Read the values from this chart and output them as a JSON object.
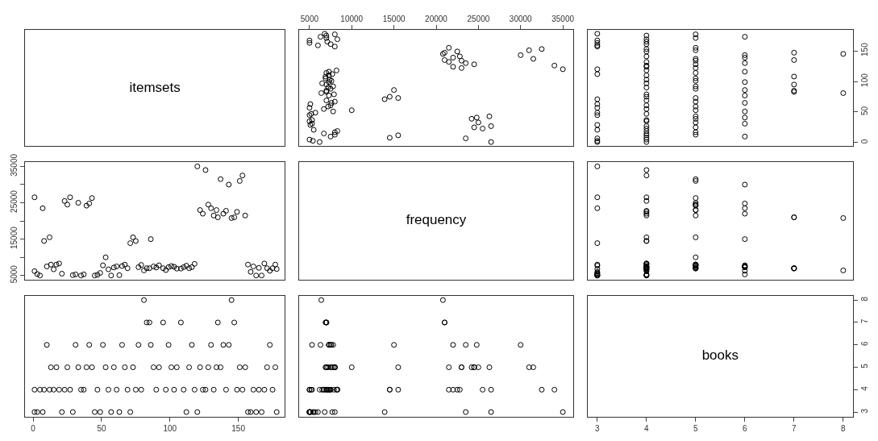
{
  "chart_data": [
    {
      "type": "other",
      "title": "itemsets"
    },
    {
      "type": "scatter",
      "marker": "circle",
      "color": "#000000",
      "grid": false,
      "tick_labels": "x",
      "xlim": [
        3800,
        36200
      ],
      "ylim": [
        -6,
        184
      ],
      "xticks": [
        5000,
        10000,
        15000,
        20000,
        25000,
        30000,
        35000
      ],
      "x": [
        26500,
        6200,
        5400,
        5000,
        23500,
        14500,
        7500,
        15500,
        8000,
        6700,
        8000,
        8300,
        5500,
        25500,
        24500,
        26500,
        5100,
        5300,
        25000,
        5000,
        5300,
        24200,
        24800,
        26300,
        5000,
        5200,
        5700,
        7800,
        10000,
        6700,
        5000,
        7200,
        7500,
        5100,
        7600,
        8000,
        7000,
        13900,
        15500,
        14500,
        7300,
        7900,
        6400,
        7000,
        7000,
        15000,
        7500,
        7200,
        7800,
        7000,
        6500,
        7300,
        7600,
        7400,
        6900,
        6900,
        7300,
        7700,
        7000,
        7300,
        8200,
        35000,
        23000,
        22000,
        34000,
        24500,
        23500,
        21500,
        23000,
        21000,
        31500,
        22000,
        22800,
        30000,
        20800,
        21000,
        22500,
        31000,
        32500,
        21500,
        8000,
        6000,
        7500,
        5000,
        7100,
        5000,
        8300,
        7000,
        6300,
        7000,
        8000,
        6800
      ],
      "values": [
        1,
        1,
        3,
        5,
        7,
        8,
        10,
        12,
        13,
        15,
        17,
        19,
        21,
        23,
        25,
        27,
        29,
        31,
        33,
        35,
        37,
        39,
        41,
        43,
        45,
        47,
        49,
        51,
        53,
        55,
        57,
        59,
        61,
        63,
        65,
        67,
        69,
        71,
        73,
        75,
        77,
        79,
        81,
        83,
        85,
        86,
        88,
        90,
        92,
        95,
        97,
        99,
        101,
        103,
        105,
        108,
        110,
        112,
        114,
        116,
        118,
        120,
        122,
        124,
        126,
        128,
        130,
        132,
        134,
        135,
        137,
        139,
        141,
        143,
        145,
        147,
        149,
        151,
        153,
        155,
        157,
        159,
        161,
        163,
        165,
        167,
        169,
        171,
        173,
        175,
        177,
        178
      ]
    },
    {
      "type": "scatter",
      "marker": "circle",
      "color": "#000000",
      "grid": false,
      "tick_labels": "y",
      "xlim": [
        2.8,
        8.2
      ],
      "ylim": [
        -6,
        184
      ],
      "yticks": [
        0,
        50,
        100,
        150
      ],
      "x": [
        3,
        4,
        3,
        4,
        3,
        4,
        6,
        4,
        5,
        4,
        5,
        4,
        3,
        4,
        5,
        4,
        3,
        6,
        5,
        4,
        4,
        5,
        6,
        5,
        3,
        4,
        3,
        6,
        5,
        4,
        3,
        5,
        4,
        3,
        6,
        5,
        4,
        3,
        5,
        4,
        6,
        4,
        8,
        7,
        7,
        6,
        5,
        4,
        5,
        7,
        4,
        6,
        5,
        4,
        5,
        7,
        4,
        3,
        5,
        6,
        4,
        3,
        5,
        4,
        4,
        5,
        6,
        4,
        5,
        7,
        5,
        6,
        4,
        6,
        8,
        7,
        4,
        5,
        4,
        5,
        3,
        3,
        4,
        3,
        4,
        3,
        4,
        5,
        6,
        4,
        5,
        3
      ],
      "values": [
        1,
        1,
        3,
        5,
        7,
        8,
        10,
        12,
        13,
        15,
        17,
        19,
        21,
        23,
        25,
        27,
        29,
        31,
        33,
        35,
        37,
        39,
        41,
        43,
        45,
        47,
        49,
        51,
        53,
        55,
        57,
        59,
        61,
        63,
        65,
        67,
        69,
        71,
        73,
        75,
        77,
        79,
        81,
        83,
        85,
        86,
        88,
        90,
        92,
        95,
        97,
        99,
        101,
        103,
        105,
        108,
        110,
        112,
        114,
        116,
        118,
        120,
        122,
        124,
        126,
        128,
        130,
        132,
        134,
        135,
        137,
        139,
        141,
        143,
        145,
        147,
        149,
        151,
        153,
        155,
        157,
        159,
        161,
        163,
        165,
        167,
        169,
        171,
        173,
        175,
        177,
        178
      ]
    },
    {
      "type": "scatter",
      "marker": "circle",
      "color": "#000000",
      "grid": false,
      "tick_labels": "y",
      "xlim": [
        -6,
        184
      ],
      "ylim": [
        3800,
        36200
      ],
      "yticks": [
        5000,
        {
          "value": 10000,
          "label": null
        },
        15000,
        {
          "value": 20000,
          "label": null
        },
        25000,
        {
          "value": 30000,
          "label": null
        },
        35000
      ],
      "x": [
        1,
        1,
        3,
        5,
        7,
        8,
        10,
        12,
        13,
        15,
        17,
        19,
        21,
        23,
        25,
        27,
        29,
        31,
        33,
        35,
        37,
        39,
        41,
        43,
        45,
        47,
        49,
        51,
        53,
        55,
        57,
        59,
        61,
        63,
        65,
        67,
        69,
        71,
        73,
        75,
        77,
        79,
        81,
        83,
        85,
        86,
        88,
        90,
        92,
        95,
        97,
        99,
        101,
        103,
        105,
        108,
        110,
        112,
        114,
        116,
        118,
        120,
        122,
        124,
        126,
        128,
        130,
        132,
        134,
        135,
        137,
        139,
        141,
        143,
        145,
        147,
        149,
        151,
        153,
        155,
        157,
        159,
        161,
        163,
        165,
        167,
        169,
        171,
        173,
        175,
        177,
        178
      ],
      "values": [
        26500,
        6200,
        5400,
        5000,
        23500,
        14500,
        7500,
        15500,
        8000,
        6700,
        8000,
        8300,
        5500,
        25500,
        24500,
        26500,
        5100,
        5300,
        25000,
        5000,
        5300,
        24200,
        24800,
        26300,
        5000,
        5200,
        5700,
        7800,
        10000,
        6700,
        5000,
        7200,
        7500,
        5100,
        7600,
        8000,
        7000,
        13900,
        15500,
        14500,
        7300,
        7900,
        6400,
        7000,
        7000,
        15000,
        7500,
        7200,
        7800,
        7000,
        6500,
        7300,
        7600,
        7400,
        6900,
        6900,
        7300,
        7700,
        7000,
        7300,
        8200,
        35000,
        23000,
        22000,
        34000,
        24500,
        23500,
        21500,
        23000,
        21000,
        31500,
        22000,
        22800,
        30000,
        20800,
        21000,
        22500,
        31000,
        32500,
        21500,
        8000,
        6000,
        7500,
        5000,
        7100,
        5000,
        8300,
        7000,
        6300,
        7000,
        8000,
        6800
      ]
    },
    {
      "type": "other",
      "title": "frequency"
    },
    {
      "type": "scatter",
      "marker": "circle",
      "color": "#000000",
      "grid": false,
      "tick_labels": false,
      "xlim": [
        2.8,
        8.2
      ],
      "ylim": [
        3800,
        36200
      ],
      "x": [
        3,
        4,
        3,
        4,
        3,
        4,
        6,
        4,
        5,
        4,
        5,
        4,
        3,
        4,
        5,
        4,
        3,
        6,
        5,
        4,
        4,
        5,
        6,
        5,
        3,
        4,
        3,
        6,
        5,
        4,
        3,
        5,
        4,
        3,
        6,
        5,
        4,
        3,
        5,
        4,
        6,
        4,
        8,
        7,
        7,
        6,
        5,
        4,
        5,
        7,
        4,
        6,
        5,
        4,
        5,
        7,
        4,
        3,
        5,
        6,
        4,
        3,
        5,
        4,
        4,
        5,
        6,
        4,
        5,
        7,
        5,
        6,
        4,
        6,
        8,
        7,
        4,
        5,
        4,
        5,
        3,
        3,
        4,
        3,
        4,
        3,
        4,
        5,
        6,
        4,
        5,
        3
      ],
      "values": [
        26500,
        6200,
        5400,
        5000,
        23500,
        14500,
        7500,
        15500,
        8000,
        6700,
        8000,
        8300,
        5500,
        25500,
        24500,
        26500,
        5100,
        5300,
        25000,
        5000,
        5300,
        24200,
        24800,
        26300,
        5000,
        5200,
        5700,
        7800,
        10000,
        6700,
        5000,
        7200,
        7500,
        5100,
        7600,
        8000,
        7000,
        13900,
        15500,
        14500,
        7300,
        7900,
        6400,
        7000,
        7000,
        15000,
        7500,
        7200,
        7800,
        7000,
        6500,
        7300,
        7600,
        7400,
        6900,
        6900,
        7300,
        7700,
        7000,
        7300,
        8200,
        35000,
        23000,
        22000,
        34000,
        24500,
        23500,
        21500,
        23000,
        21000,
        31500,
        22000,
        22800,
        30000,
        20800,
        21000,
        22500,
        31000,
        32500,
        21500,
        8000,
        6000,
        7500,
        5000,
        7100,
        5000,
        8300,
        7000,
        6300,
        7000,
        8000,
        6800
      ]
    },
    {
      "type": "scatter",
      "marker": "circle",
      "color": "#000000",
      "grid": false,
      "tick_labels": "x",
      "xlim": [
        -6,
        184
      ],
      "ylim": [
        2.8,
        8.2
      ],
      "xticks": [
        0,
        50,
        100,
        150
      ],
      "x": [
        1,
        1,
        3,
        5,
        7,
        8,
        10,
        12,
        13,
        15,
        17,
        19,
        21,
        23,
        25,
        27,
        29,
        31,
        33,
        35,
        37,
        39,
        41,
        43,
        45,
        47,
        49,
        51,
        53,
        55,
        57,
        59,
        61,
        63,
        65,
        67,
        69,
        71,
        73,
        75,
        77,
        79,
        81,
        83,
        85,
        86,
        88,
        90,
        92,
        95,
        97,
        99,
        101,
        103,
        105,
        108,
        110,
        112,
        114,
        116,
        118,
        120,
        122,
        124,
        126,
        128,
        130,
        132,
        134,
        135,
        137,
        139,
        141,
        143,
        145,
        147,
        149,
        151,
        153,
        155,
        157,
        159,
        161,
        163,
        165,
        167,
        169,
        171,
        173,
        175,
        177,
        178
      ],
      "values": [
        3,
        4,
        3,
        4,
        3,
        4,
        6,
        4,
        5,
        4,
        5,
        4,
        3,
        4,
        5,
        4,
        3,
        6,
        5,
        4,
        4,
        5,
        6,
        5,
        3,
        4,
        3,
        6,
        5,
        4,
        3,
        5,
        4,
        3,
        6,
        5,
        4,
        3,
        5,
        4,
        6,
        4,
        8,
        7,
        7,
        6,
        5,
        4,
        5,
        7,
        4,
        6,
        5,
        4,
        5,
        7,
        4,
        3,
        5,
        6,
        4,
        3,
        5,
        4,
        4,
        5,
        6,
        4,
        5,
        7,
        5,
        6,
        4,
        6,
        8,
        7,
        4,
        5,
        4,
        5,
        3,
        3,
        4,
        3,
        4,
        3,
        4,
        5,
        6,
        4,
        5,
        3
      ]
    },
    {
      "type": "scatter",
      "marker": "circle",
      "color": "#000000",
      "grid": false,
      "tick_labels": false,
      "xlim": [
        3800,
        36200
      ],
      "ylim": [
        2.8,
        8.2
      ],
      "x": [
        26500,
        6200,
        5400,
        5000,
        23500,
        14500,
        7500,
        15500,
        8000,
        6700,
        8000,
        8300,
        5500,
        25500,
        24500,
        26500,
        5100,
        5300,
        25000,
        5000,
        5300,
        24200,
        24800,
        26300,
        5000,
        5200,
        5700,
        7800,
        10000,
        6700,
        5000,
        7200,
        7500,
        5100,
        7600,
        8000,
        7000,
        13900,
        15500,
        14500,
        7300,
        7900,
        6400,
        7000,
        7000,
        15000,
        7500,
        7200,
        7800,
        7000,
        6500,
        7300,
        7600,
        7400,
        6900,
        6900,
        7300,
        7700,
        7000,
        7300,
        8200,
        35000,
        23000,
        22000,
        34000,
        24500,
        23500,
        21500,
        23000,
        21000,
        31500,
        22000,
        22800,
        30000,
        20800,
        21000,
        22500,
        31000,
        32500,
        21500,
        8000,
        6000,
        7500,
        5000,
        7100,
        5000,
        8300,
        7000,
        6300,
        7000,
        8000,
        6800
      ],
      "values": [
        3,
        4,
        3,
        4,
        3,
        4,
        6,
        4,
        5,
        4,
        5,
        4,
        3,
        4,
        5,
        4,
        3,
        6,
        5,
        4,
        4,
        5,
        6,
        5,
        3,
        4,
        3,
        6,
        5,
        4,
        3,
        5,
        4,
        3,
        6,
        5,
        4,
        3,
        5,
        4,
        6,
        4,
        8,
        7,
        7,
        6,
        5,
        4,
        5,
        7,
        4,
        6,
        5,
        4,
        5,
        7,
        4,
        3,
        5,
        6,
        4,
        3,
        5,
        4,
        4,
        5,
        6,
        4,
        5,
        7,
        5,
        6,
        4,
        6,
        8,
        7,
        4,
        5,
        4,
        5,
        3,
        3,
        4,
        3,
        4,
        3,
        4,
        5,
        6,
        4,
        5,
        3
      ]
    },
    {
      "type": "scatter",
      "title": "books",
      "grid": false,
      "xlim": [
        2.8,
        8.2
      ],
      "ylim": [
        2.8,
        8.2
      ],
      "xticks": [
        3,
        4,
        5,
        6,
        7,
        8
      ],
      "yticks": [
        3,
        4,
        5,
        6,
        7,
        8
      ]
    }
  ]
}
